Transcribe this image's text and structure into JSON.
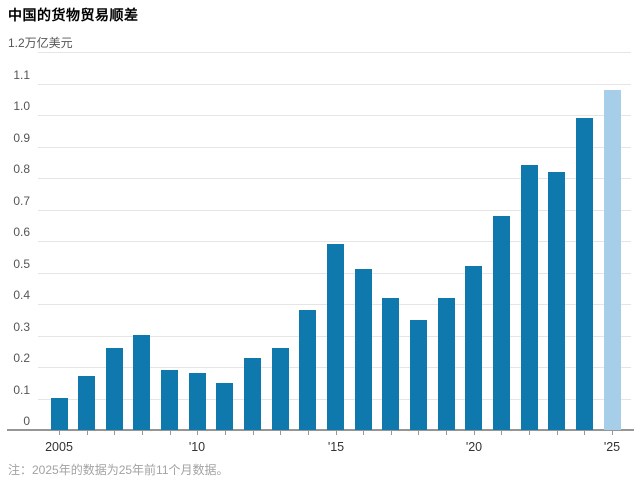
{
  "title": "中国的货物贸易顺差",
  "note": "注：2025年的数据为25年前11个月数据。",
  "y_axis": {
    "unit": "万亿美元",
    "ticks": [
      "1.2",
      "1.1",
      "1.0",
      "0.9",
      "0.8",
      "0.7",
      "0.6",
      "0.5",
      "0.4",
      "0.3",
      "0.2",
      "0.1",
      "0"
    ]
  },
  "x_axis": {
    "tick_labels": [
      {
        "year": 2005,
        "label": "2005"
      },
      {
        "year": 2010,
        "label": "'10"
      },
      {
        "year": 2015,
        "label": "'15"
      },
      {
        "year": 2020,
        "label": "'20"
      },
      {
        "year": 2025,
        "label": "'25"
      }
    ]
  },
  "colors": {
    "bar": "#0f79ad",
    "bar_highlight": "#a7cee9",
    "gridline": "#e5e5e5",
    "axis_line": "#969696",
    "tick": "#999999",
    "axis_text": "#555555",
    "x_axis_text": "#333333",
    "note_text": "#a2a2a2"
  },
  "chart_data": {
    "type": "bar",
    "title": "中国的货物贸易顺差",
    "ylabel": "万亿美元",
    "ylim": [
      0,
      1.2
    ],
    "y_tick_step": 0.1,
    "grid": true,
    "legend": null,
    "categories": [
      2005,
      2006,
      2007,
      2008,
      2009,
      2010,
      2011,
      2012,
      2013,
      2014,
      2015,
      2016,
      2017,
      2018,
      2019,
      2020,
      2021,
      2022,
      2023,
      2024,
      2025
    ],
    "values": [
      0.1,
      0.17,
      0.26,
      0.3,
      0.19,
      0.18,
      0.15,
      0.23,
      0.26,
      0.38,
      0.59,
      0.51,
      0.42,
      0.35,
      0.42,
      0.52,
      0.68,
      0.84,
      0.82,
      0.99,
      1.08
    ],
    "highlight_category": 2025
  }
}
